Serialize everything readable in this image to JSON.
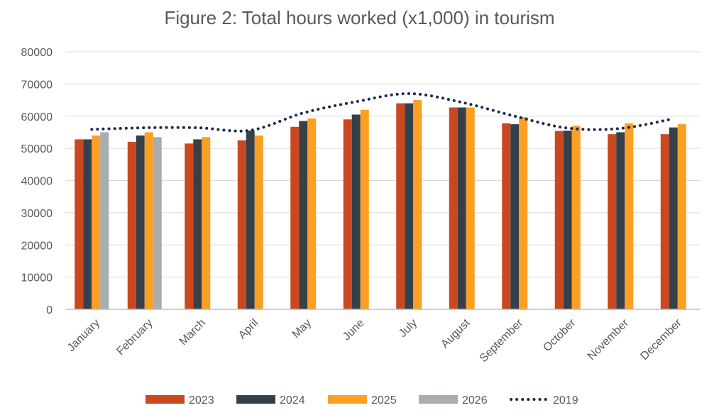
{
  "chart_data": {
    "type": "bar",
    "title": "Figure 2: Total hours worked (x1,000) in tourism",
    "categories": [
      "January",
      "February",
      "March",
      "April",
      "May",
      "June",
      "July",
      "August",
      "September",
      "October",
      "November",
      "December"
    ],
    "series": [
      {
        "name": "2023",
        "type": "bar",
        "color": "#C9481F",
        "values": [
          52800,
          52000,
          51500,
          52500,
          56700,
          59000,
          64000,
          62700,
          57800,
          55400,
          54400,
          54400
        ]
      },
      {
        "name": "2024",
        "type": "bar",
        "color": "#36404A",
        "values": [
          52800,
          54000,
          52800,
          55500,
          58500,
          60500,
          64000,
          62700,
          57500,
          55500,
          55000,
          56500
        ]
      },
      {
        "name": "2025",
        "type": "bar",
        "color": "#FBA023",
        "values": [
          54000,
          55000,
          53500,
          54000,
          59300,
          62000,
          65000,
          62700,
          59700,
          57000,
          57800,
          57500
        ]
      },
      {
        "name": "2026",
        "type": "bar",
        "color": "#A9ADB0",
        "values": [
          55000,
          53500,
          null,
          null,
          null,
          null,
          null,
          null,
          null,
          null,
          null,
          null
        ]
      },
      {
        "name": "2019",
        "type": "line",
        "style": "dotted",
        "color": "#1B2A4A",
        "values": [
          55900,
          56400,
          56400,
          55600,
          61000,
          64500,
          67000,
          64300,
          60000,
          56300,
          56200,
          59200
        ]
      }
    ],
    "ylim": [
      0,
      80000
    ],
    "yticks": [
      0,
      10000,
      20000,
      30000,
      40000,
      50000,
      60000,
      70000,
      80000
    ],
    "xlabel": "",
    "ylabel": "",
    "grid": true,
    "legend_position": "bottom"
  }
}
